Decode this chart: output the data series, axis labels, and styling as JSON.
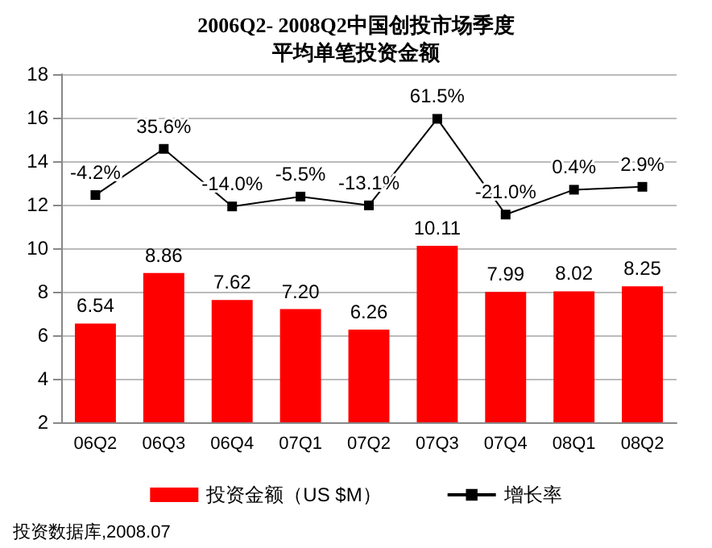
{
  "chart_data": {
    "type": "bar",
    "title": "2006Q2- 2008Q2中国创投市场季度",
    "subtitle": "平均单笔投资金额",
    "categories": [
      "06Q2",
      "06Q3",
      "06Q4",
      "07Q1",
      "07Q2",
      "07Q3",
      "07Q4",
      "08Q1",
      "08Q2"
    ],
    "series": [
      {
        "name": "投资金额（US $M）",
        "color": "#ff0000",
        "values": [
          6.54,
          8.86,
          7.62,
          7.2,
          6.26,
          10.11,
          7.99,
          8.02,
          8.25
        ],
        "value_labels": [
          "6.54",
          "8.86",
          "7.62",
          "7.20",
          "6.26",
          "10.11",
          "7.99",
          "8.02",
          "8.25"
        ]
      },
      {
        "name": "增长率",
        "type": "line",
        "axis": "y2",
        "color": "#000000",
        "marker": "square",
        "values": [
          -4.2,
          35.6,
          -14.0,
          -5.5,
          -13.1,
          61.5,
          -21.0,
          0.4,
          2.9
        ],
        "value_labels": [
          "-4.2%",
          "35.6%",
          "-14.0%",
          "-5.5%",
          "-13.1%",
          "61.5%",
          "-21.0%",
          "0.4%",
          "2.9%"
        ]
      }
    ],
    "ylim": [
      2,
      18
    ],
    "yticks": [
      2,
      4,
      6,
      8,
      10,
      12,
      14,
      16,
      18
    ],
    "y2lim": [
      -200,
      100
    ],
    "grid": "y",
    "legend": "bottom",
    "annotations": [
      "投资数据库,2008.07"
    ]
  }
}
